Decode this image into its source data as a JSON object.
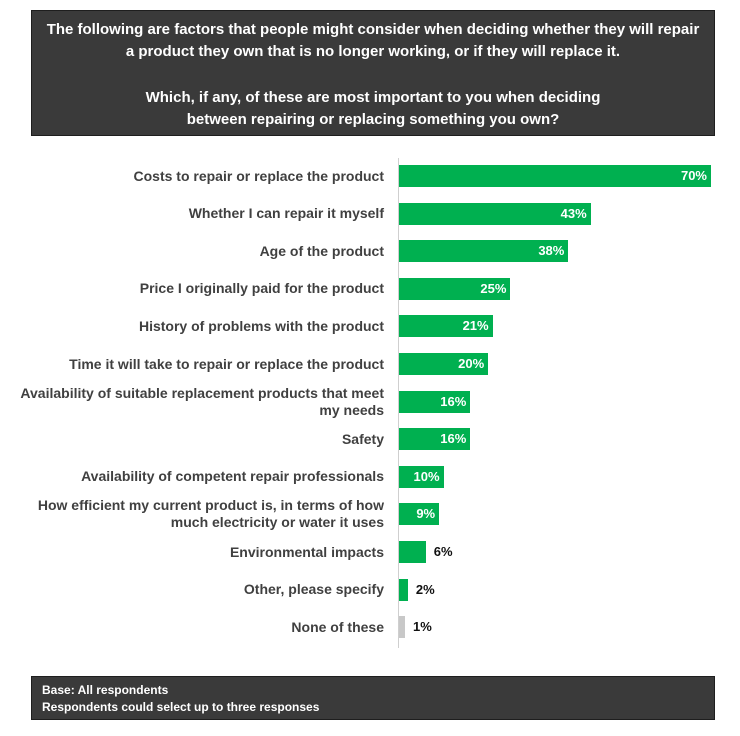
{
  "header": {
    "question_intro": "The following are factors that people might consider when deciding whether they will repair a product they own that is no longer working, or if they will replace it.",
    "question": "Which, if any, of these are most important to you when deciding between repairing or replacing something you own?"
  },
  "footer": {
    "base": "Base: All respondents",
    "note": "Respondents could select up to three responses"
  },
  "colors": {
    "bar": "#00b050",
    "bar_none": "#c8c8c8",
    "panel": "#3a3a3a"
  },
  "chart_data": {
    "type": "bar",
    "orientation": "horizontal",
    "categories": [
      "Costs to repair or replace the product",
      "Whether I can repair it myself",
      "Age of the product",
      "Price I originally paid for the product",
      "History of problems with the product",
      "Time it will take to repair or replace the product",
      "Availability of suitable replacement products that meet my needs",
      "Safety",
      "Availability of competent repair professionals",
      "How efficient my current product is, in terms of how much electricity or water it uses",
      "Environmental impacts",
      "Other, please specify",
      "None of these"
    ],
    "values": [
      70,
      43,
      38,
      25,
      21,
      20,
      16,
      16,
      10,
      9,
      6,
      2,
      1
    ],
    "value_labels": [
      "70%",
      "43%",
      "38%",
      "25%",
      "21%",
      "20%",
      "16%",
      "16%",
      "10%",
      "9%",
      "6%",
      "2%",
      "1%"
    ],
    "xlim": [
      0,
      72
    ],
    "grid": false,
    "legend": "none"
  }
}
